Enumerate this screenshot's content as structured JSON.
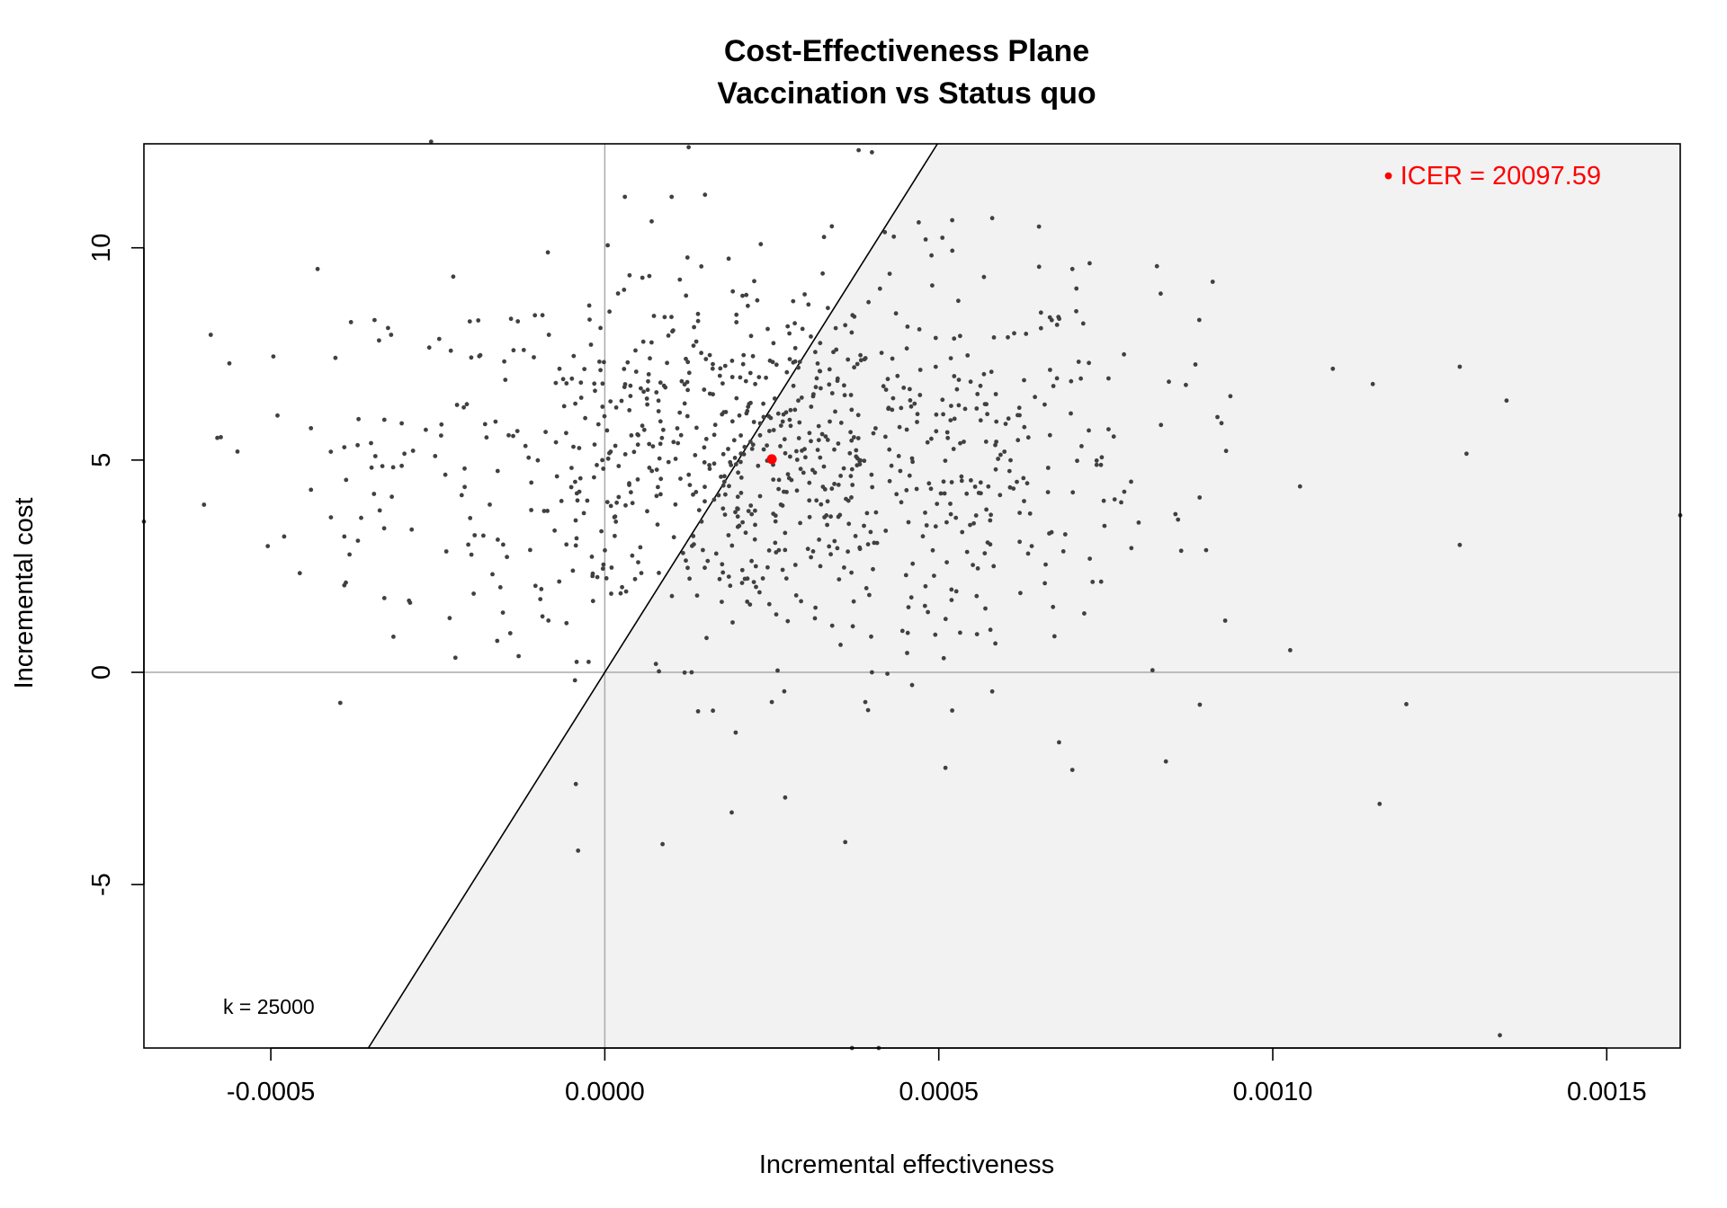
{
  "chart_data": {
    "type": "scatter",
    "title": "Cost-Effectiveness Plane",
    "subtitle": "Vaccination vs Status quo",
    "xlabel": "Incremental effectiveness",
    "ylabel": "Incremental cost",
    "xlim": [
      -0.00069,
      0.00161
    ],
    "ylim": [
      -8.85,
      12.45
    ],
    "x_ticks": [
      {
        "value": -0.0005,
        "label": "-0.0005"
      },
      {
        "value": 0.0,
        "label": "0.0000"
      },
      {
        "value": 0.0005,
        "label": "0.0005"
      },
      {
        "value": 0.001,
        "label": "0.0010"
      },
      {
        "value": 0.0015,
        "label": "0.0015"
      }
    ],
    "y_ticks": [
      {
        "value": -5,
        "label": "-5"
      },
      {
        "value": 0,
        "label": "0"
      },
      {
        "value": 5,
        "label": "5"
      },
      {
        "value": 10,
        "label": "10"
      }
    ],
    "wtp": {
      "k": 25000,
      "label": "k = 25000"
    },
    "icer": {
      "value": 20097.59,
      "label": "• ICER = 20097.59",
      "point": [
        0.00025,
        5.02
      ]
    },
    "colors": {
      "points": "#404040",
      "icer": "#ff0000",
      "region": "#f2f2f2",
      "zero_lines": "#aaaaaa",
      "wtp_line": "#000000"
    },
    "n_simulations": 1000,
    "highlighted_points": [
      [
        -0.00059,
        7.95
      ],
      [
        -0.00055,
        5.2
      ],
      [
        -0.0006,
        3.95
      ],
      [
        -0.00069,
        3.55
      ],
      [
        -0.00049,
        6.05
      ],
      [
        -0.00048,
        3.2
      ],
      [
        -0.00043,
        9.5
      ],
      [
        -0.00044,
        5.75
      ],
      [
        -0.00044,
        4.3
      ],
      [
        -0.00041,
        3.65
      ],
      [
        -0.00039,
        2.05
      ],
      [
        -0.00039,
        3.2
      ],
      [
        -0.00038,
        8.25
      ],
      [
        -0.00037,
        5.35
      ],
      [
        -0.00035,
        5.4
      ],
      [
        -0.00033,
        5.95
      ],
      [
        -0.00033,
        1.75
      ],
      [
        -0.00032,
        7.95
      ],
      [
        -0.0003,
        5.15
      ],
      [
        -0.00026,
        12.5
      ],
      [
        -0.00021,
        4.8
      ],
      [
        3e-05,
        11.2
      ],
      [
        0.0001,
        11.2
      ],
      [
        0.00015,
        11.25
      ],
      [
        0.00038,
        12.3
      ],
      [
        0.0004,
        12.25
      ],
      [
        0.00047,
        10.6
      ],
      [
        0.00052,
        10.65
      ],
      [
        0.00058,
        10.7
      ],
      [
        0.00065,
        10.5
      ],
      [
        0.0007,
        9.5
      ],
      [
        0.00089,
        8.3
      ],
      [
        0.00091,
        9.2
      ],
      [
        0.00109,
        7.15
      ],
      [
        0.00128,
        7.2
      ],
      [
        0.00135,
        6.4
      ],
      [
        0.00129,
        5.15
      ],
      [
        0.00161,
        3.7
      ],
      [
        0.00128,
        3.0
      ],
      [
        0.0012,
        -0.75
      ],
      [
        0.00116,
        -3.1
      ],
      [
        0.00134,
        -8.55
      ],
      [
        0.00084,
        -2.1
      ],
      [
        0.0007,
        -2.3
      ],
      [
        0.00068,
        -1.65
      ],
      [
        0.00051,
        -2.25
      ],
      [
        0.00036,
        -4.0
      ],
      [
        0.00027,
        -2.95
      ],
      [
        0.00019,
        -3.3
      ],
      [
        -4e-05,
        -4.2
      ],
      [
        0.00037,
        -8.85
      ],
      [
        0.00041,
        -8.85
      ],
      [
        0.00046,
        -0.3
      ],
      [
        0.00058,
        -0.45
      ],
      [
        0.00025,
        -0.7
      ],
      [
        0.00039,
        -0.7
      ],
      [
        0.00052,
        -0.9
      ],
      [
        0.00013,
        0.0
      ],
      [
        0.0004,
        0.0
      ],
      [
        0.00082,
        0.05
      ]
    ]
  }
}
